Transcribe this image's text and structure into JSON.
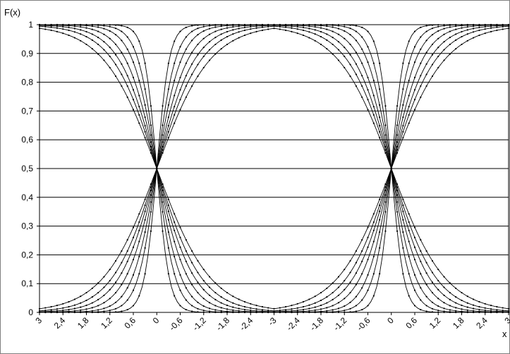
{
  "chart_data": {
    "type": "line",
    "title": "",
    "ylabel": "F(x)",
    "xlabel": "x",
    "ylim": [
      0,
      1
    ],
    "yticks": [
      "0",
      "0,1",
      "0,2",
      "0,3",
      "0,4",
      "0,5",
      "0,6",
      "0,7",
      "0,8",
      "0,9",
      "1"
    ],
    "categories": [
      "3",
      "2,4",
      "1,8",
      "1,2",
      "0,6",
      "0",
      "-0,6",
      "-1,2",
      "-1,8",
      "-2,4",
      "-3",
      "-2,4",
      "-1,8",
      "-1,2",
      "-0,6",
      "0",
      "0,6",
      "1,2",
      "1,8",
      "2,4",
      "3"
    ],
    "grid": "horizontal",
    "legend": "none",
    "line_color": "#000000",
    "series_scales": [
      0.28,
      0.42,
      0.55,
      0.7,
      0.85,
      1.0,
      1.2
    ],
    "series": [
      {
        "values": [
          1.0,
          1.0,
          1.0,
          1.0,
          0.9798,
          0.5,
          0.0202,
          0.0,
          0.0,
          0.0,
          0.0,
          0.0,
          0.0,
          0.0,
          0.0202,
          0.5,
          0.9798,
          1.0,
          1.0,
          1.0,
          1.0
        ]
      },
      {
        "values": [
          1.0,
          1.0,
          0.9999,
          0.9978,
          0.9234,
          0.5,
          0.0766,
          0.0022,
          0.0001,
          0.0,
          0.0,
          0.0,
          0.0001,
          0.0022,
          0.0766,
          0.5,
          0.9234,
          0.9978,
          0.9999,
          1.0,
          1.0
        ]
      },
      {
        "values": [
          0.9993,
          0.9946,
          0.9775,
          0.9341,
          0.8581,
          0.5,
          0.1419,
          0.0659,
          0.0225,
          0.0054,
          0.0007,
          0.0054,
          0.0225,
          0.0659,
          0.1419,
          0.5,
          0.8581,
          0.9341,
          0.9775,
          0.9946,
          0.9993
        ]
      },
      {
        "values": [
          0.9834,
          0.9602,
          0.9287,
          0.8729,
          0.7972,
          0.5,
          0.2028,
          0.1271,
          0.0713,
          0.0398,
          0.0166,
          0.0398,
          0.0713,
          0.1271,
          0.2028,
          0.5,
          0.7972,
          0.8729,
          0.9287,
          0.9602,
          0.9834
        ]
      },
      {
        "values": [
          0.9687,
          0.9354,
          0.8924,
          0.8302,
          0.7528,
          0.5,
          0.2472,
          0.1698,
          0.1076,
          0.0646,
          0.0313,
          0.0646,
          0.1076,
          0.1698,
          0.2472,
          0.5,
          0.7528,
          0.8302,
          0.8924,
          0.9354,
          0.9687
        ]
      },
      {
        "values": [
          0.9582,
          0.9167,
          0.8618,
          0.7969,
          0.7181,
          0.5,
          0.2819,
          0.2031,
          0.1382,
          0.0833,
          0.0418,
          0.0833,
          0.1382,
          0.2031,
          0.2819,
          0.5,
          0.7181,
          0.7969,
          0.8618,
          0.9167,
          0.9582
        ]
      },
      {
        "values": [
          0.9486,
          0.8978,
          0.8353,
          0.7622,
          0.6867,
          0.5,
          0.3133,
          0.2378,
          0.1647,
          0.1022,
          0.0514,
          0.1022,
          0.1647,
          0.2378,
          0.3133,
          0.5,
          0.6867,
          0.7622,
          0.8353,
          0.8978,
          0.9486
        ]
      }
    ]
  }
}
